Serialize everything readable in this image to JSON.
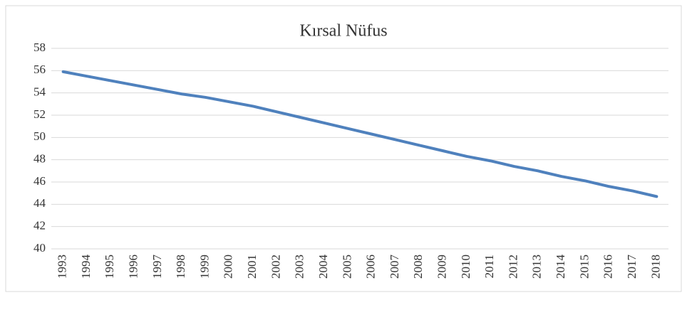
{
  "chart_data": {
    "type": "line",
    "title": "Kırsal Nüfus",
    "categories": [
      "1993",
      "1994",
      "1995",
      "1996",
      "1997",
      "1998",
      "1999",
      "2000",
      "2001",
      "2002",
      "2003",
      "2004",
      "2005",
      "2006",
      "2007",
      "2008",
      "2009",
      "2010",
      "2011",
      "2012",
      "2013",
      "2014",
      "2015",
      "2016",
      "2017",
      "2018"
    ],
    "series": [
      {
        "name": "Kırsal Nüfus",
        "color": "#4f81bd",
        "values": [
          55.9,
          55.5,
          55.1,
          54.7,
          54.3,
          53.9,
          53.6,
          53.2,
          52.8,
          52.3,
          51.8,
          51.3,
          50.8,
          50.3,
          49.8,
          49.3,
          48.8,
          48.3,
          47.9,
          47.4,
          47.0,
          46.5,
          46.1,
          45.6,
          45.2,
          44.7
        ]
      }
    ],
    "ylim": [
      40,
      58
    ],
    "yticks": [
      40,
      42,
      44,
      46,
      48,
      50,
      52,
      54,
      56,
      58
    ],
    "grid": true
  }
}
